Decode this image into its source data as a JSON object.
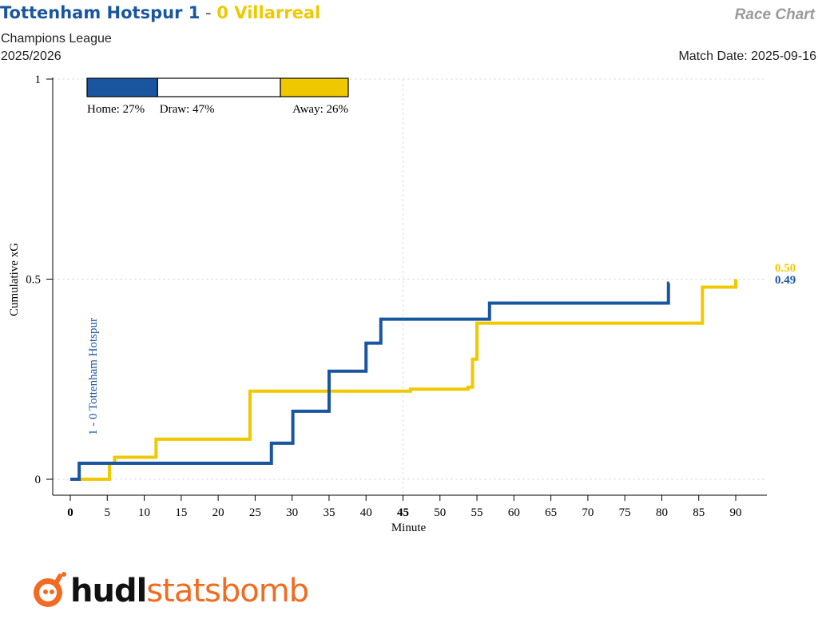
{
  "header": {
    "home_title": "Tottenham Hotspur 1",
    "separator": " - ",
    "away_title": "0 Villarreal",
    "right_label": "Race Chart",
    "competition": "Champions League",
    "season": "2025/2026",
    "match_date": "Match Date: 2025-09-16"
  },
  "colors": {
    "home": "#1a56a0",
    "away": "#f0c800",
    "draw": "#ffffff"
  },
  "logo": {
    "part1": "hudl",
    "part2": "statsbomb"
  },
  "chart_data": {
    "type": "line",
    "xlabel": "Minute",
    "ylabel": "Cumulative xG",
    "xlim": [
      0,
      94
    ],
    "ylim": [
      -0.05,
      1
    ],
    "xticks": [
      0,
      5,
      10,
      15,
      20,
      25,
      30,
      35,
      40,
      45,
      50,
      55,
      60,
      65,
      70,
      75,
      80,
      85,
      90
    ],
    "yticks": [
      0,
      0.5,
      1
    ],
    "ytick_labels": [
      "0",
      "0.5",
      "1"
    ],
    "grid": true,
    "win_probability": [
      {
        "label": "Home: 27%",
        "value": 27,
        "color": "#1a56a0"
      },
      {
        "label": "Draw: 47%",
        "value": 47,
        "color": "#ffffff"
      },
      {
        "label": "Away: 26%",
        "value": 26,
        "color": "#f0c800"
      }
    ],
    "series": [
      {
        "name": "Tottenham Hotspur",
        "color": "#1a56a0",
        "final_label": "0.49",
        "x": [
          0,
          1.2,
          16.5,
          27.2,
          30.1,
          35.0,
          40.0,
          42.0,
          56.7,
          80.9
        ],
        "y": [
          0,
          0.04,
          0.04,
          0.09,
          0.17,
          0.27,
          0.34,
          0.4,
          0.44,
          0.49
        ],
        "end_x": 81
      },
      {
        "name": "Villarreal",
        "color": "#f0c800",
        "final_label": "0.50",
        "x": [
          0,
          5.3,
          6.0,
          11.6,
          24.3,
          46.0,
          53.8,
          54.4,
          55.0,
          85.5,
          90.0
        ],
        "y": [
          0,
          0.04,
          0.055,
          0.1,
          0.22,
          0.225,
          0.23,
          0.3,
          0.39,
          0.48,
          0.5
        ],
        "end_x": 90
      }
    ],
    "annotations": [
      {
        "text": "1 - 0 Tottenham Hotspur",
        "x": 1.2,
        "color": "#1a56a0"
      }
    ]
  }
}
